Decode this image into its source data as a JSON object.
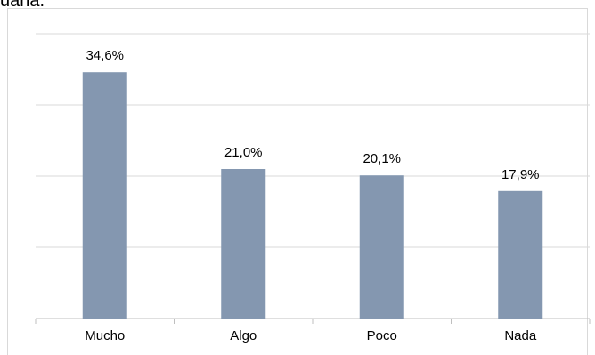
{
  "header": {
    "cut_title_fragment": "uana."
  },
  "chart_data": {
    "type": "bar",
    "categories": [
      "Mucho",
      "Algo",
      "Poco",
      "Nada"
    ],
    "values": [
      34.6,
      21.0,
      20.1,
      17.9
    ],
    "data_labels": [
      "34,6%",
      "21,0%",
      "20,1%",
      "17,9%"
    ],
    "title": "",
    "xlabel": "",
    "ylabel": "",
    "ylim": [
      0,
      40
    ],
    "grid": true,
    "legend": "none",
    "colors": {
      "bar": "#8497b0",
      "grid": "#d9d9d9",
      "axis": "#bfbfbf"
    }
  }
}
